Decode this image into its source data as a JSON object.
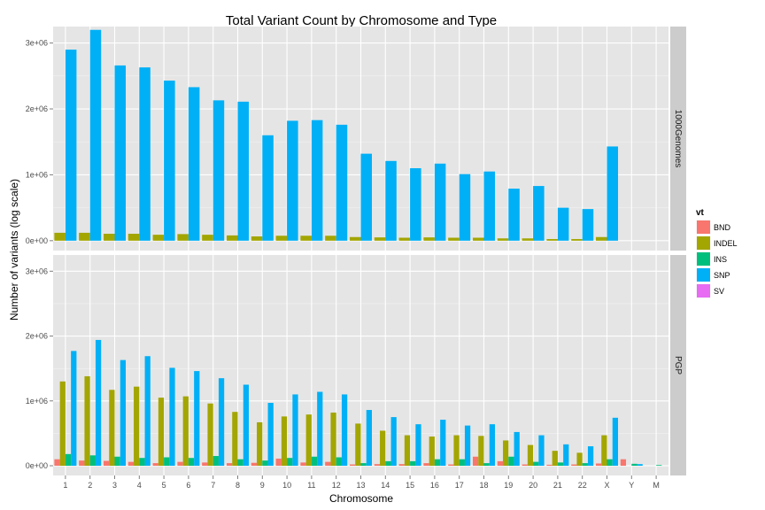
{
  "chart_data": {
    "type": "bar",
    "title": "Total Variant Count by Chromosome and Type",
    "xlabel": "Chromosome",
    "ylabel": "Number of variants (log scale)",
    "categories": [
      "1",
      "2",
      "3",
      "4",
      "5",
      "6",
      "7",
      "8",
      "9",
      "10",
      "11",
      "12",
      "13",
      "14",
      "15",
      "16",
      "17",
      "18",
      "19",
      "20",
      "21",
      "22",
      "X",
      "Y",
      "M"
    ],
    "ylim": [
      -150000,
      3250000
    ],
    "yticks": [
      0,
      1000000,
      2000000,
      3000000
    ],
    "ytick_labels": [
      "0e+00",
      "1e+06",
      "2e+06",
      "3e+06"
    ],
    "grid": true,
    "legend": {
      "title": "vt",
      "placement": "right",
      "entries": [
        {
          "name": "BND",
          "color": "#F8766D"
        },
        {
          "name": "INDEL",
          "color": "#A3A500"
        },
        {
          "name": "INS",
          "color": "#00BF7D"
        },
        {
          "name": "SNP",
          "color": "#00B0F6"
        },
        {
          "name": "SV",
          "color": "#E76BF3"
        }
      ]
    },
    "panels": [
      {
        "label": "1000Genomes",
        "types": [
          "INDEL",
          "SNP"
        ],
        "values": {
          "INDEL": [
            120000,
            120000,
            105000,
            105000,
            90000,
            100000,
            90000,
            80000,
            65000,
            75000,
            75000,
            75000,
            55000,
            50000,
            45000,
            50000,
            45000,
            45000,
            35000,
            35000,
            25000,
            25000,
            55000,
            null,
            null
          ],
          "SNP": [
            2900000,
            3200000,
            2660000,
            2630000,
            2430000,
            2330000,
            2130000,
            2110000,
            1600000,
            1820000,
            1830000,
            1760000,
            1320000,
            1210000,
            1100000,
            1170000,
            1010000,
            1050000,
            790000,
            830000,
            500000,
            480000,
            1430000,
            null,
            null
          ]
        }
      },
      {
        "label": "PGP",
        "types": [
          "BND",
          "INDEL",
          "INS",
          "SNP"
        ],
        "values": {
          "BND": [
            100000,
            80000,
            75000,
            60000,
            40000,
            60000,
            50000,
            40000,
            45000,
            110000,
            50000,
            60000,
            20000,
            25000,
            25000,
            40000,
            20000,
            140000,
            70000,
            20000,
            15000,
            20000,
            35000,
            100000,
            null
          ],
          "INDEL": [
            1300000,
            1380000,
            1170000,
            1220000,
            1050000,
            1070000,
            960000,
            830000,
            670000,
            760000,
            790000,
            820000,
            650000,
            540000,
            470000,
            450000,
            470000,
            460000,
            390000,
            320000,
            230000,
            200000,
            470000,
            null,
            null
          ],
          "INS": [
            180000,
            160000,
            140000,
            120000,
            130000,
            120000,
            150000,
            100000,
            80000,
            120000,
            140000,
            130000,
            40000,
            70000,
            70000,
            100000,
            100000,
            40000,
            140000,
            60000,
            50000,
            40000,
            100000,
            30000,
            10000
          ],
          "SNP": [
            1770000,
            1940000,
            1630000,
            1690000,
            1510000,
            1460000,
            1350000,
            1250000,
            970000,
            1100000,
            1140000,
            1100000,
            860000,
            750000,
            640000,
            710000,
            620000,
            640000,
            520000,
            470000,
            330000,
            300000,
            740000,
            25000,
            null
          ]
        }
      }
    ]
  }
}
